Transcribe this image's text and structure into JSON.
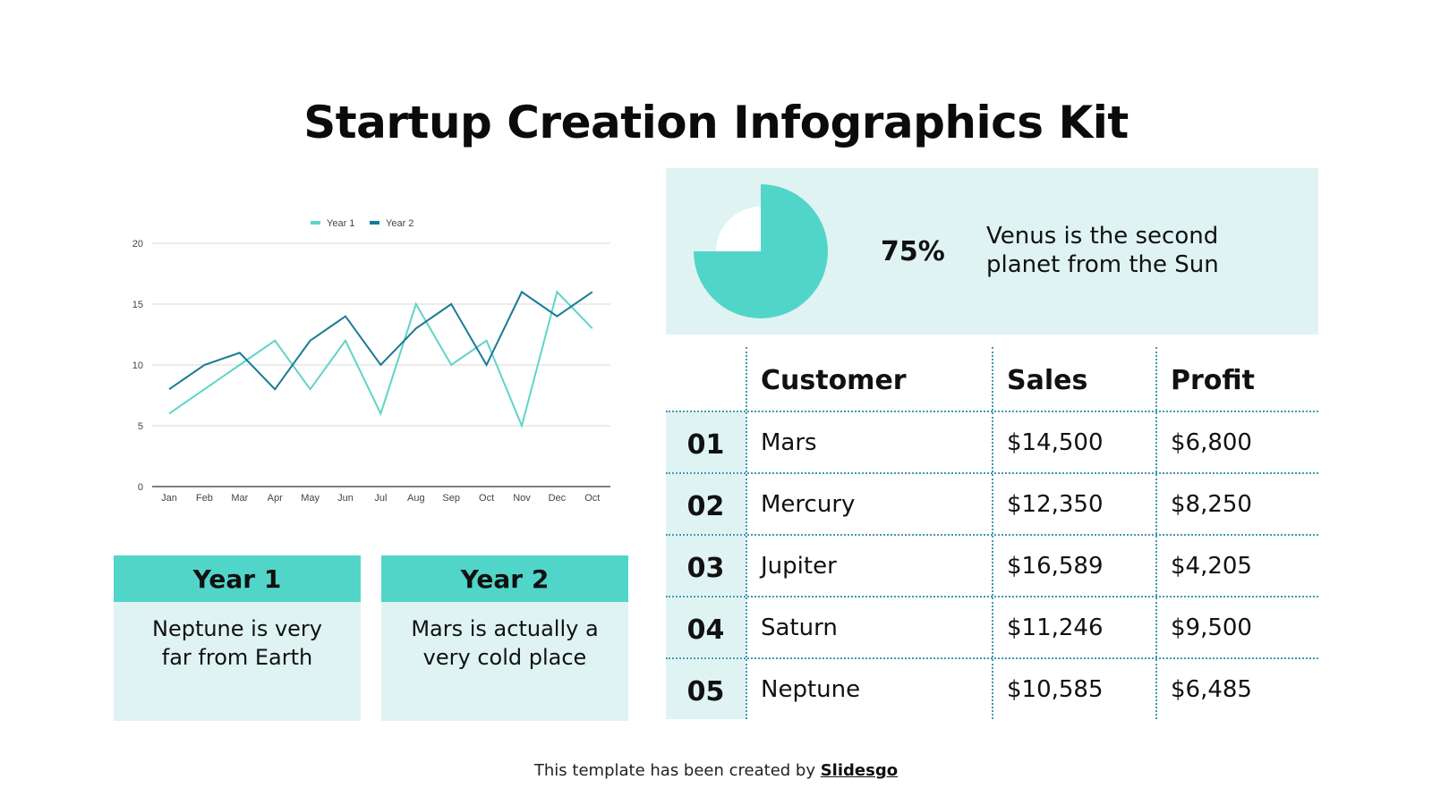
{
  "title": "Startup Creation Infographics Kit",
  "colors": {
    "accent_teal": "#52d5c9",
    "light_panel": "#dff3f3",
    "year1_line": "#5fd4c8",
    "year2_line": "#1a7a94",
    "divider": "#3e9ab0"
  },
  "chart_data": {
    "type": "line",
    "title": "",
    "xlabel": "",
    "ylabel": "",
    "categories": [
      "Jan",
      "Feb",
      "Mar",
      "Apr",
      "May",
      "Jun",
      "Jul",
      "Aug",
      "Sep",
      "Oct",
      "Nov",
      "Dec",
      "Oct"
    ],
    "series": [
      {
        "name": "Year 1",
        "color": "#5fd4c8",
        "values": [
          6,
          8,
          10,
          12,
          8,
          12,
          6,
          15,
          10,
          12,
          5,
          16,
          13
        ]
      },
      {
        "name": "Year 2",
        "color": "#1a7a94",
        "values": [
          8,
          10,
          11,
          8,
          12,
          14,
          10,
          13,
          15,
          10,
          16,
          14,
          16
        ]
      }
    ],
    "yticks": [
      0,
      5,
      10,
      15,
      20
    ],
    "ylim": [
      0,
      20
    ],
    "grid": true,
    "legend_position": "top"
  },
  "cards": [
    {
      "heading": "Year 1",
      "text_line1": "Neptune is very",
      "text_line2": "far from Earth"
    },
    {
      "heading": "Year 2",
      "text_line1": "Mars is actually a",
      "text_line2": "very cold place"
    }
  ],
  "pie": {
    "percent_label": "75%",
    "percent_value": 75,
    "description_line1": "Venus is the second",
    "description_line2": "planet from the Sun"
  },
  "table": {
    "headers": {
      "customer": "Customer",
      "sales": "Sales",
      "profit": "Profit"
    },
    "rows": [
      {
        "num": "01",
        "customer": "Mars",
        "sales": "$14,500",
        "profit": "$6,800"
      },
      {
        "num": "02",
        "customer": "Mercury",
        "sales": "$12,350",
        "profit": "$8,250"
      },
      {
        "num": "03",
        "customer": "Jupiter",
        "sales": "$16,589",
        "profit": "$4,205"
      },
      {
        "num": "04",
        "customer": "Saturn",
        "sales": "$11,246",
        "profit": "$9,500"
      },
      {
        "num": "05",
        "customer": "Neptune",
        "sales": "$10,585",
        "profit": "$6,485"
      }
    ]
  },
  "footer": {
    "text": "This template has been created by ",
    "brand": "Slidesgo"
  }
}
